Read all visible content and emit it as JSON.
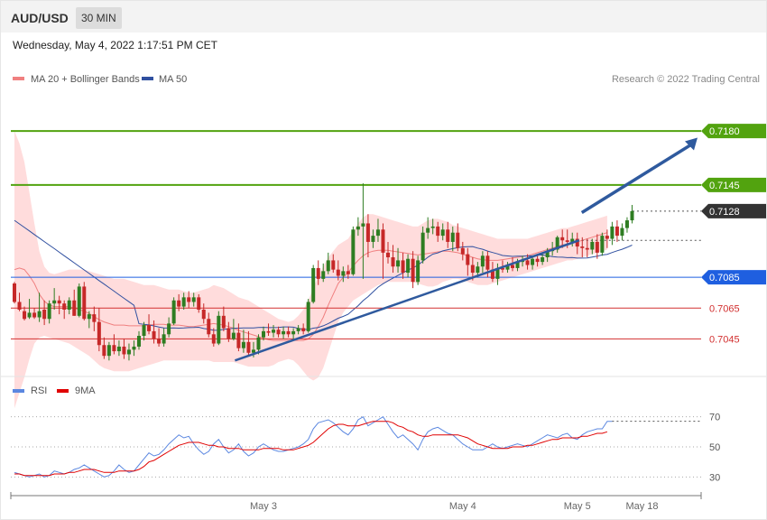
{
  "header": {
    "symbol": "AUD/USD",
    "timeframe": "30 MIN"
  },
  "timestamp": "Wednesday, May 4, 2022 1:17:51 PM CET",
  "legend": {
    "bb_label": "MA 20 + Bollinger Bands",
    "ma50_label": "MA 50",
    "credit": "Research © 2022 Trading Central"
  },
  "rsi_legend": {
    "rsi_label": "RSI",
    "ma9_label": "9MA"
  },
  "colors": {
    "bull": "#2e7d22",
    "bear": "#c62828",
    "band": "#ffdcdc",
    "ma20": "#f08080",
    "ma50": "#3050a0",
    "green": "#52a30f",
    "blue": "#1f5fe0",
    "red": "#d23030",
    "rsi": "#5b87e0",
    "ma9": "#e00000",
    "arrow": "#2f5a9e"
  },
  "chart_data": {
    "type": "candlestick",
    "ylim": [
      7030,
      7200
    ],
    "levels": [
      {
        "value": 7180,
        "label": "0.7180",
        "kind": "resistance"
      },
      {
        "value": 7145,
        "label": "0.7145",
        "kind": "resistance"
      },
      {
        "value": 7128,
        "label": "0.7128",
        "kind": "current"
      },
      {
        "value": 7085,
        "label": "0.7085",
        "kind": "pivot"
      },
      {
        "value": 7065,
        "label": "0.7065",
        "kind": "support"
      },
      {
        "value": 7045,
        "label": "0.7045",
        "kind": "support"
      }
    ],
    "x_labels": [
      "May 3",
      "May 4",
      "May 5",
      "May 18"
    ],
    "x_label_index": [
      50,
      90,
      113,
      126
    ],
    "trendline": [
      [
        45,
        7031
      ],
      [
        113,
        7109
      ]
    ],
    "projection": [
      [
        113,
        7127
      ],
      [
        125,
        7178
      ]
    ],
    "candles": [
      [
        7081,
        7082,
        7069,
        7068
      ],
      [
        7069,
        7075,
        7064,
        7063
      ],
      [
        7063,
        7066,
        7058,
        7057
      ],
      [
        7059,
        7071,
        7062,
        7058
      ],
      [
        7062,
        7065,
        7059,
        7058
      ],
      [
        7059,
        7075,
        7063,
        7056
      ],
      [
        7064,
        7070,
        7058,
        7054
      ],
      [
        7058,
        7070,
        7068,
        7055
      ],
      [
        7068,
        7078,
        7070,
        7064
      ],
      [
        7070,
        7073,
        7068,
        7061
      ],
      [
        7068,
        7070,
        7064,
        7058
      ],
      [
        7064,
        7072,
        7070,
        7061
      ],
      [
        7070,
        7077,
        7060,
        7060
      ],
      [
        7060,
        7081,
        7079,
        7059
      ],
      [
        7079,
        7082,
        7058,
        7057
      ],
      [
        7058,
        7063,
        7061,
        7052
      ],
      [
        7061,
        7066,
        7056,
        7050
      ],
      [
        7056,
        7065,
        7041,
        7037
      ],
      [
        7041,
        7046,
        7034,
        7032
      ],
      [
        7034,
        7043,
        7041,
        7031
      ],
      [
        7041,
        7048,
        7037,
        7035
      ],
      [
        7037,
        7044,
        7040,
        7034
      ],
      [
        7040,
        7045,
        7035,
        7032
      ],
      [
        7035,
        7042,
        7038,
        7031
      ],
      [
        7038,
        7044,
        7040,
        7034
      ],
      [
        7040,
        7050,
        7047,
        7038
      ],
      [
        7047,
        7056,
        7054,
        7044
      ],
      [
        7054,
        7061,
        7050,
        7048
      ],
      [
        7050,
        7057,
        7045,
        7042
      ],
      [
        7045,
        7052,
        7042,
        7040
      ],
      [
        7042,
        7052,
        7048,
        7040
      ],
      [
        7048,
        7059,
        7055,
        7046
      ],
      [
        7055,
        7072,
        7070,
        7054
      ],
      [
        7070,
        7074,
        7066,
        7063
      ],
      [
        7066,
        7075,
        7072,
        7064
      ],
      [
        7072,
        7076,
        7069,
        7065
      ],
      [
        7069,
        7075,
        7072,
        7066
      ],
      [
        7072,
        7074,
        7064,
        7062
      ],
      [
        7064,
        7068,
        7058,
        7055
      ],
      [
        7058,
        7062,
        7048,
        7046
      ],
      [
        7048,
        7052,
        7042,
        7040
      ],
      [
        7042,
        7063,
        7060,
        7041
      ],
      [
        7060,
        7066,
        7052,
        7050
      ],
      [
        7052,
        7056,
        7045,
        7043
      ],
      [
        7045,
        7058,
        7049,
        7044
      ],
      [
        7049,
        7055,
        7039,
        7037
      ],
      [
        7039,
        7051,
        7043,
        7036
      ],
      [
        7043,
        7050,
        7036,
        7034
      ],
      [
        7036,
        7043,
        7038,
        7033
      ],
      [
        7038,
        7048,
        7046,
        7035
      ],
      [
        7046,
        7053,
        7050,
        7044
      ],
      [
        7050,
        7055,
        7049,
        7047
      ],
      [
        7049,
        7054,
        7051,
        7046
      ],
      [
        7051,
        7053,
        7048,
        7046
      ],
      [
        7048,
        7053,
        7050,
        7045
      ],
      [
        7050,
        7053,
        7048,
        7046
      ],
      [
        7048,
        7052,
        7050,
        7045
      ],
      [
        7050,
        7054,
        7052,
        7048
      ],
      [
        7052,
        7055,
        7050,
        7048
      ],
      [
        7050,
        7071,
        7069,
        7049
      ],
      [
        7069,
        7093,
        7091,
        7068
      ],
      [
        7091,
        7096,
        7084,
        7080
      ],
      [
        7084,
        7094,
        7089,
        7082
      ],
      [
        7089,
        7101,
        7096,
        7087
      ],
      [
        7096,
        7100,
        7090,
        7088
      ],
      [
        7090,
        7096,
        7086,
        7083
      ],
      [
        7086,
        7092,
        7089,
        7082
      ],
      [
        7089,
        7093,
        7087,
        7084
      ],
      [
        7087,
        7118,
        7116,
        7086
      ],
      [
        7116,
        7124,
        7118,
        7112
      ],
      [
        7118,
        7146,
        7120,
        7084
      ],
      [
        7120,
        7126,
        7108,
        7098
      ],
      [
        7108,
        7116,
        7112,
        7104
      ],
      [
        7112,
        7123,
        7116,
        7108
      ],
      [
        7116,
        7120,
        7101,
        7084
      ],
      [
        7101,
        7108,
        7098,
        7094
      ],
      [
        7098,
        7106,
        7092,
        7088
      ],
      [
        7092,
        7104,
        7096,
        7088
      ],
      [
        7096,
        7101,
        7088,
        7084
      ],
      [
        7088,
        7100,
        7097,
        7085
      ],
      [
        7097,
        7102,
        7082,
        7078
      ],
      [
        7082,
        7099,
        7096,
        7080
      ],
      [
        7096,
        7118,
        7114,
        7094
      ],
      [
        7114,
        7124,
        7117,
        7110
      ],
      [
        7117,
        7123,
        7118,
        7113
      ],
      [
        7118,
        7121,
        7112,
        7108
      ],
      [
        7112,
        7120,
        7116,
        7109
      ],
      [
        7116,
        7121,
        7108,
        7104
      ],
      [
        7108,
        7118,
        7114,
        7102
      ],
      [
        7114,
        7120,
        7104,
        7102
      ],
      [
        7104,
        7108,
        7100,
        7096
      ],
      [
        7100,
        7104,
        7093,
        7086
      ],
      [
        7093,
        7098,
        7088,
        7083
      ],
      [
        7088,
        7095,
        7092,
        7085
      ],
      [
        7092,
        7102,
        7099,
        7088
      ],
      [
        7099,
        7102,
        7090,
        7085
      ],
      [
        7090,
        7095,
        7084,
        7082
      ],
      [
        7084,
        7094,
        7091,
        7080
      ],
      [
        7091,
        7096,
        7090,
        7088
      ],
      [
        7090,
        7095,
        7093,
        7088
      ],
      [
        7093,
        7098,
        7091,
        7089
      ],
      [
        7091,
        7097,
        7095,
        7089
      ],
      [
        7095,
        7099,
        7096,
        7092
      ],
      [
        7096,
        7100,
        7093,
        7090
      ],
      [
        7093,
        7099,
        7097,
        7090
      ],
      [
        7097,
        7100,
        7095,
        7092
      ],
      [
        7095,
        7100,
        7098,
        7093
      ],
      [
        7098,
        7104,
        7102,
        7095
      ],
      [
        7102,
        7108,
        7103,
        7099
      ],
      [
        7103,
        7112,
        7111,
        7101
      ],
      [
        7111,
        7116,
        7109,
        7104
      ],
      [
        7109,
        7116,
        7108,
        7104
      ],
      [
        7108,
        7114,
        7110,
        7105
      ],
      [
        7110,
        7114,
        7105,
        7100
      ],
      [
        7105,
        7111,
        7104,
        7098
      ]
    ],
    "candles_tail": [
      [
        7104,
        7110,
        7103,
        7098
      ],
      [
        7103,
        7110,
        7108,
        7100
      ],
      [
        7108,
        7113,
        7101,
        7097
      ],
      [
        7101,
        7114,
        7112,
        7099
      ],
      [
        7112,
        7116,
        7110,
        7104
      ],
      [
        7110,
        7121,
        7118,
        7106
      ],
      [
        7118,
        7122,
        7112,
        7108
      ],
      [
        7112,
        7120,
        7117,
        7109
      ],
      [
        7117,
        7124,
        7122,
        7114
      ],
      [
        7122,
        7132,
        7128,
        7120
      ]
    ],
    "bb_upper": [
      7180,
      7172,
      7160,
      7140,
      7120,
      7102,
      7092,
      7088,
      7087,
      7088,
      7089,
      7090,
      7090,
      7090,
      7090,
      7089,
      7088,
      7087,
      7086,
      7085,
      7084,
      7084,
      7084,
      7083,
      7082,
      7081,
      7080,
      7080,
      7080,
      7079,
      7078,
      7077,
      7077,
      7077,
      7076,
      7075,
      7075,
      7076,
      7077,
      7078,
      7080,
      7079,
      7078,
      7076,
      7074,
      7072,
      7071,
      7070,
      7068,
      7066,
      7064,
      7062,
      7060,
      7058,
      7057,
      7056,
      7057,
      7060,
      7064,
      7070,
      7078,
      7086,
      7092,
      7098,
      7102,
      7106,
      7108,
      7110,
      7115,
      7120,
      7124,
      7126,
      7126,
      7125,
      7124,
      7123,
      7122,
      7121,
      7120,
      7119,
      7118,
      7118,
      7120,
      7122,
      7123,
      7123,
      7122,
      7121,
      7119,
      7118,
      7117,
      7116,
      7115,
      7114,
      7113,
      7112,
      7111,
      7110,
      7110,
      7110,
      7110,
      7110,
      7110,
      7110,
      7111,
      7112,
      7113,
      7114,
      7115,
      7116,
      7117,
      7117,
      7118,
      7119,
      7120,
      7121,
      7122,
      7123,
      7124,
      7125
    ],
    "bb_lower": [
      7000,
      7010,
      7020,
      7032,
      7042,
      7046,
      7047,
      7046,
      7045,
      7044,
      7043,
      7042,
      7040,
      7038,
      7036,
      7034,
      7031,
      7028,
      7026,
      7025,
      7024,
      7024,
      7024,
      7024,
      7025,
      7026,
      7027,
      7028,
      7029,
      7030,
      7031,
      7031,
      7031,
      7031,
      7031,
      7031,
      7031,
      7031,
      7031,
      7031,
      7030,
      7030,
      7030,
      7030,
      7030,
      7029,
      7028,
      7027,
      7027,
      7027,
      7027,
      7027,
      7028,
      7030,
      7031,
      7032,
      7031,
      7028,
      7024,
      7020,
      7018,
      7020,
      7026,
      7036,
      7046,
      7056,
      7062,
      7066,
      7070,
      7072,
      7074,
      7076,
      7078,
      7080,
      7081,
      7082,
      7082,
      7082,
      7082,
      7082,
      7082,
      7081,
      7080,
      7079,
      7079,
      7080,
      7082,
      7083,
      7084,
      7084,
      7083,
      7082,
      7081,
      7080,
      7080,
      7080,
      7081,
      7082,
      7083,
      7084,
      7085,
      7086,
      7087,
      7088,
      7089,
      7090,
      7091,
      7092,
      7093,
      7094,
      7095,
      7096,
      7096,
      7097,
      7098,
      7099,
      7100,
      7101,
      7102,
      7103
    ],
    "rsi": [
      33,
      32,
      31,
      30,
      31,
      32,
      30,
      31,
      34,
      33,
      32,
      33,
      35,
      36,
      38,
      36,
      34,
      32,
      30,
      31,
      34,
      38,
      35,
      33,
      34,
      38,
      42,
      46,
      44,
      45,
      48,
      52,
      55,
      58,
      56,
      57,
      52,
      48,
      45,
      47,
      52,
      55,
      50,
      46,
      48,
      52,
      47,
      44,
      46,
      50,
      52,
      50,
      48,
      47,
      47,
      48,
      49,
      50,
      52,
      55,
      62,
      66,
      67,
      68,
      66,
      63,
      60,
      58,
      62,
      68,
      70,
      64,
      66,
      68,
      70,
      65,
      60,
      56,
      58,
      55,
      52,
      48,
      55,
      60,
      62,
      63,
      61,
      59,
      58,
      55,
      52,
      50,
      48,
      48,
      48,
      50,
      52,
      50,
      49,
      50,
      51,
      52,
      51,
      50,
      52,
      54,
      56,
      58,
      57,
      56,
      58,
      59,
      56,
      55,
      58,
      60,
      61,
      62,
      62,
      67,
      67
    ],
    "rsi_ma9": [
      32,
      32,
      31,
      31,
      31,
      31,
      31,
      31,
      32,
      32,
      32,
      33,
      33,
      34,
      35,
      35,
      35,
      34,
      33,
      33,
      33,
      34,
      34,
      34,
      34,
      35,
      37,
      40,
      41,
      43,
      45,
      47,
      49,
      51,
      52,
      53,
      53,
      53,
      52,
      51,
      51,
      50,
      50,
      49,
      49,
      49,
      48,
      48,
      48,
      48,
      49,
      49,
      49,
      49,
      48,
      48,
      48,
      49,
      50,
      51,
      53,
      56,
      59,
      62,
      64,
      65,
      65,
      64,
      64,
      64,
      65,
      66,
      67,
      67,
      67,
      67,
      66,
      64,
      63,
      61,
      60,
      58,
      57,
      57,
      58,
      58,
      58,
      58,
      58,
      58,
      57,
      56,
      54,
      52,
      51,
      50,
      49,
      49,
      49,
      49,
      50,
      50,
      50,
      51,
      51,
      52,
      53,
      54,
      55,
      55,
      56,
      56,
      56,
      56,
      57,
      57,
      58,
      59,
      59,
      60
    ],
    "rsi_ylim": [
      20,
      80
    ],
    "rsi_levels": [
      {
        "value": 70,
        "label": "70"
      },
      {
        "value": 50,
        "label": "50"
      },
      {
        "value": 30,
        "label": "30"
      }
    ]
  }
}
